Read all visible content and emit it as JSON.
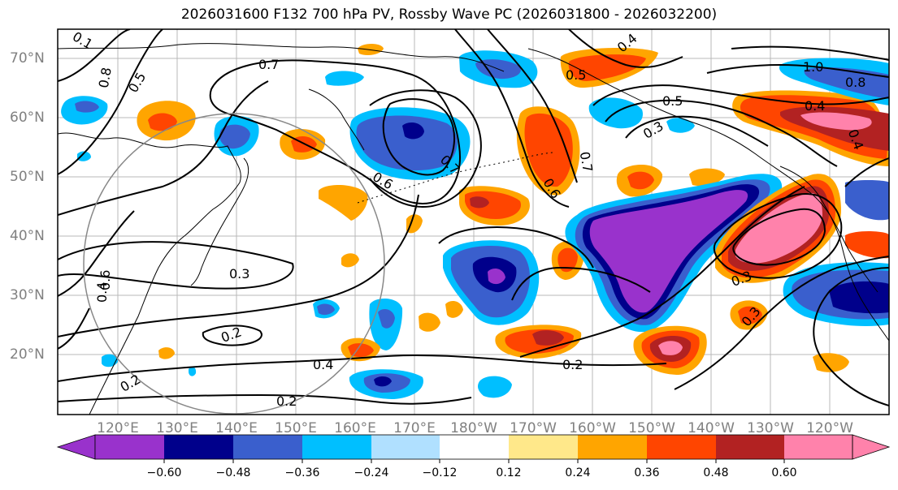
{
  "title": "2026031600 F132 700 hPa PV, Rossby Wave PC (2026031800 - 2026032200)",
  "map": {
    "lat_labels": [
      "70°N",
      "60°N",
      "50°N",
      "40°N",
      "30°N",
      "20°N"
    ],
    "lon_labels": [
      "120°E",
      "130°E",
      "140°E",
      "150°E",
      "160°E",
      "170°E",
      "180°W",
      "170°W",
      "160°W",
      "150°W",
      "140°W",
      "130°W",
      "120°W"
    ],
    "contour_labels": [
      "0.7",
      "0.5",
      "0.8",
      "0.6",
      "0.1",
      "0.7",
      "0.6",
      "0.3",
      "0.2",
      "0.4",
      "0.2",
      "0.2",
      "0.5",
      "0.4",
      "0.3",
      "0.7",
      "0.6",
      "0.3",
      "0.3",
      "0.2",
      "0.4",
      "1.0",
      "0.8",
      "0.5",
      "0.4",
      "0.4"
    ]
  },
  "colorbar": {
    "ticks": [
      "−0.60",
      "−0.48",
      "−0.36",
      "−0.24",
      "−0.12",
      "0.12",
      "0.24",
      "0.36",
      "0.48",
      "0.60"
    ],
    "colors": [
      "#9932cc",
      "#00008b",
      "#3a5fcd",
      "#00bfff",
      "#b0e0ff",
      "#ffffff",
      "#ffe88a",
      "#ffa500",
      "#ff4500",
      "#b22222",
      "#ff82ab"
    ]
  }
}
